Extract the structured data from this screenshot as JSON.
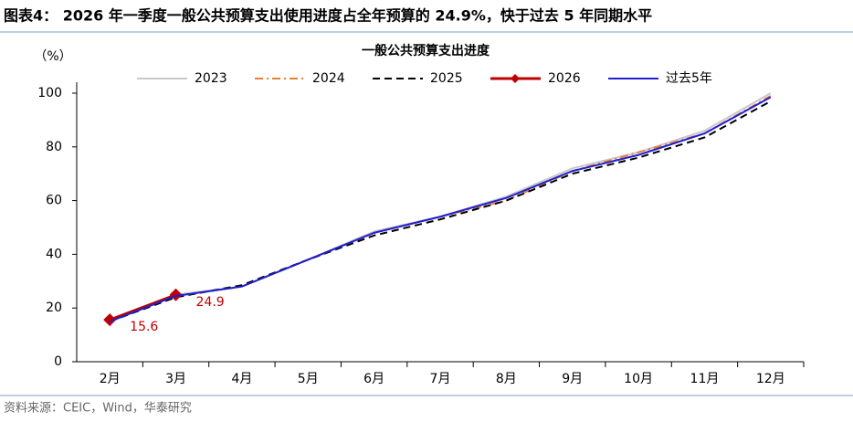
{
  "header": {
    "title": "图表4： 2026 年一季度一般公共预算支出使用进度占全年预算的 24.9%，快于过去 5 年同期水平"
  },
  "source": "资料来源：CEIC，Wind，华泰研究",
  "chart_data": {
    "type": "line",
    "title": "一般公共预算支出进度",
    "y_label": "（%）",
    "categories": [
      "2月",
      "3月",
      "4月",
      "5月",
      "6月",
      "7月",
      "8月",
      "9月",
      "10月",
      "11月",
      "12月"
    ],
    "series": [
      {
        "name": "2023",
        "color": "#c8c8c8",
        "line_style": "solid",
        "values": [
          15,
          25,
          28,
          38,
          48.5,
          54,
          61.5,
          72,
          78,
          86,
          100
        ]
      },
      {
        "name": "2024",
        "color": "#ed7d31",
        "line_style": "dashdot",
        "values": [
          15.5,
          24.5,
          28,
          38,
          48,
          54,
          60,
          71,
          78,
          85,
          99
        ]
      },
      {
        "name": "2025",
        "color": "#000000",
        "line_style": "dashed",
        "values": [
          15,
          24,
          28.5,
          38,
          47,
          53,
          60,
          70,
          76,
          83.5,
          97
        ]
      },
      {
        "name": "2026",
        "color": "#c00000",
        "line_style": "solid",
        "marker": "diamond",
        "data_labels": true,
        "values": [
          15.6,
          24.9,
          null,
          null,
          null,
          null,
          null,
          null,
          null,
          null,
          null
        ]
      },
      {
        "name": "过去5年",
        "color": "#1f1fd0",
        "line_style": "solid",
        "values": [
          15,
          24.5,
          28,
          38,
          48,
          54,
          61,
          71,
          77,
          85,
          98.5
        ]
      }
    ],
    "ylim": [
      0,
      100
    ],
    "yticks": [
      0,
      20,
      40,
      60,
      80,
      100
    ],
    "legend": "top",
    "grid": false
  }
}
